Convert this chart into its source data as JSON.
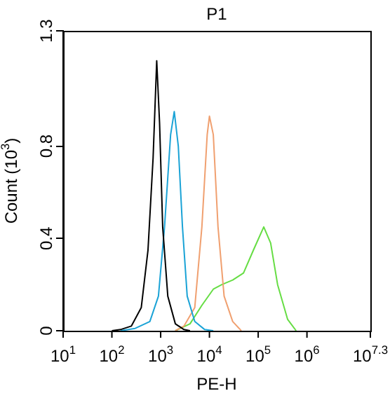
{
  "chart_data": {
    "type": "line",
    "title": "P1",
    "xlabel": "PE-H",
    "ylabel": "Count (10$^{3}$)",
    "log": "x",
    "xlim": [
      10,
      19952623
    ],
    "ylim": [
      0,
      1.3
    ],
    "xticks": [
      {
        "value": 10,
        "label": "10$^{1}$"
      },
      {
        "value": 100,
        "label": "10$^{2}$"
      },
      {
        "value": 1000,
        "label": "10$^{3}$"
      },
      {
        "value": 10000,
        "label": "10$^{4}$"
      },
      {
        "value": 100000,
        "label": "10$^{5}$"
      },
      {
        "value": 1000000,
        "label": "10$^{6}$"
      },
      {
        "value": 19952623,
        "label": "10$^{7.3}$"
      }
    ],
    "yticks": [
      0,
      0.4,
      0.8,
      1.3
    ],
    "grid": false,
    "legend": false,
    "marker": "none",
    "line_style": "solid",
    "series": [
      {
        "color": "#000000",
        "x": [
          100,
          150,
          250,
          400,
          550,
          700,
          830,
          950,
          1100,
          1400,
          2000,
          3000,
          4000
        ],
        "values": [
          0,
          0.005,
          0.02,
          0.1,
          0.35,
          0.75,
          1.17,
          0.9,
          0.45,
          0.15,
          0.03,
          0.005,
          0
        ]
      },
      {
        "color": "#1ba3d6",
        "x": [
          150,
          300,
          600,
          900,
          1200,
          1600,
          1900,
          2300,
          2800,
          3500,
          5000,
          8000,
          12000
        ],
        "values": [
          0,
          0.01,
          0.04,
          0.15,
          0.45,
          0.85,
          0.95,
          0.8,
          0.45,
          0.15,
          0.04,
          0.005,
          0
        ]
      },
      {
        "color": "#f0a070",
        "x": [
          2000,
          3000,
          5000,
          7000,
          9000,
          10000,
          12000,
          15000,
          20000,
          30000,
          45000
        ],
        "values": [
          0,
          0.02,
          0.1,
          0.45,
          0.85,
          0.93,
          0.85,
          0.45,
          0.15,
          0.04,
          0
        ]
      },
      {
        "color": "#66dd44",
        "x": [
          2000,
          4000,
          7000,
          12000,
          18000,
          30000,
          50000,
          80000,
          130000,
          180000,
          250000,
          400000,
          600000
        ],
        "values": [
          0,
          0.03,
          0.11,
          0.18,
          0.2,
          0.22,
          0.25,
          0.35,
          0.45,
          0.38,
          0.2,
          0.05,
          0
        ]
      }
    ]
  }
}
